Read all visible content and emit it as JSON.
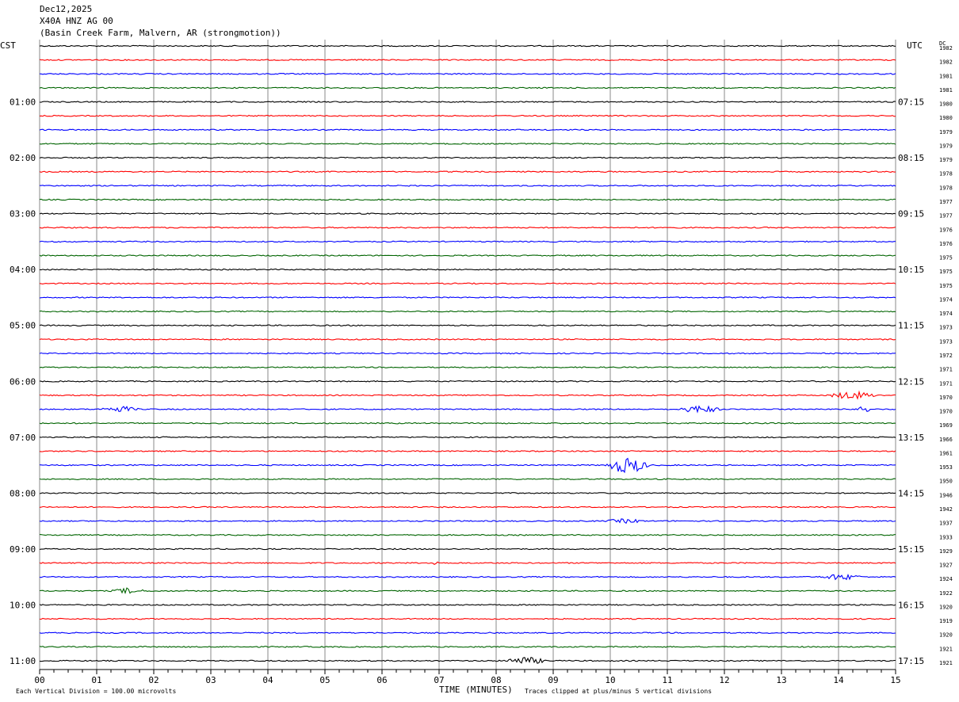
{
  "header": {
    "date": "Dec12,2025",
    "station": "X40A HNZ AG 00",
    "location": "(Basin Creek Farm, Malvern, AR (strongmotion))"
  },
  "left_timezone": "CST",
  "right_timezone": "UTC",
  "dc_label": "DC",
  "footer": {
    "scale_note": "Each Vertical Division =  100.00 microvolts",
    "xlabel": "TIME (MINUTES)",
    "clip_note": "Traces clipped at plus/minus 5 vertical divisions"
  },
  "chart_data": {
    "type": "line",
    "title": "X40A HNZ AG 00",
    "xlabel": "TIME (MINUTES)",
    "xlim": [
      0,
      15
    ],
    "x_ticks": [
      "00",
      "01",
      "02",
      "03",
      "04",
      "05",
      "06",
      "07",
      "08",
      "09",
      "10",
      "11",
      "12",
      "13",
      "14",
      "15"
    ],
    "trace_colors": [
      "#000000",
      "#ff0000",
      "#0000ff",
      "#006400"
    ],
    "grid": true,
    "left_hour_labels": [
      "01:00",
      "02:00",
      "03:00",
      "04:00",
      "05:00",
      "06:00",
      "07:00",
      "08:00",
      "09:00",
      "10:00",
      "11:00"
    ],
    "right_hour_labels": [
      "07:15",
      "08:15",
      "09:15",
      "10:15",
      "11:15",
      "12:15",
      "13:15",
      "14:15",
      "15:15",
      "16:15",
      "17:15"
    ],
    "dc_offsets": [
      1982,
      1982,
      1981,
      1981,
      1980,
      1980,
      1979,
      1979,
      1979,
      1978,
      1978,
      1977,
      1977,
      1976,
      1976,
      1975,
      1975,
      1975,
      1974,
      1974,
      1973,
      1973,
      1972,
      1971,
      1971,
      1970,
      1970,
      1969,
      1966,
      1961,
      1953,
      1950,
      1946,
      1942,
      1937,
      1933,
      1929,
      1927,
      1924,
      1922,
      1920,
      1919,
      1920,
      1921,
      1921
    ],
    "events": [
      {
        "row": 25,
        "start": 13.8,
        "end": 14.7,
        "amplitude": 4
      },
      {
        "row": 26,
        "start": 1.05,
        "end": 1.75,
        "amplitude": 3
      },
      {
        "row": 26,
        "start": 11.2,
        "end": 11.95,
        "amplitude": 4
      },
      {
        "row": 26,
        "start": 14.35,
        "end": 14.55,
        "amplitude": 7
      },
      {
        "row": 30,
        "start": 9.9,
        "end": 10.7,
        "amplitude": 9
      },
      {
        "row": 34,
        "start": 9.9,
        "end": 10.6,
        "amplitude": 2
      },
      {
        "row": 37,
        "start": 6.85,
        "end": 7.05,
        "amplitude": 3
      },
      {
        "row": 38,
        "start": 13.65,
        "end": 14.45,
        "amplitude": 3
      },
      {
        "row": 39,
        "start": 1.25,
        "end": 1.85,
        "amplitude": 3
      },
      {
        "row": 44,
        "start": 8.1,
        "end": 8.9,
        "amplitude": 4
      }
    ]
  }
}
